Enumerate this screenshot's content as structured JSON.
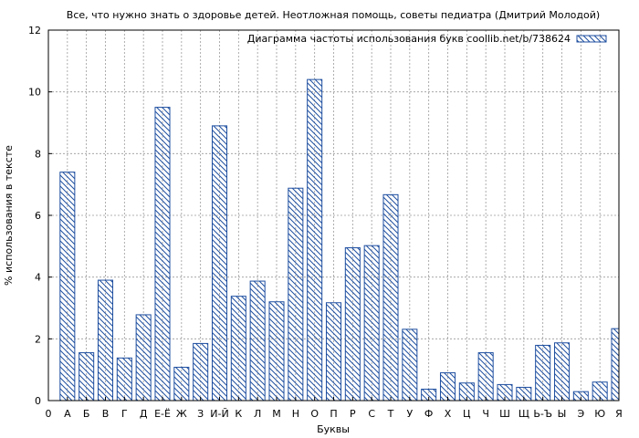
{
  "chart_data": {
    "type": "bar",
    "title": "Все, что нужно знать о здоровье детей. Неотложная помощь, советы педиатра (Дмитрий Молодой)",
    "xlabel": "Буквы",
    "ylabel": "% использования в тексте",
    "ylim": [
      0,
      12
    ],
    "yticks": [
      "0",
      "2",
      "4",
      "6",
      "8",
      "10",
      "12"
    ],
    "grid": true,
    "legend_position": "top-right",
    "x_start_label": "0",
    "categories": [
      "А",
      "Б",
      "В",
      "Г",
      "Д",
      "Е-Ё",
      "Ж",
      "З",
      "И-Й",
      "К",
      "Л",
      "М",
      "Н",
      "О",
      "П",
      "Р",
      "С",
      "Т",
      "У",
      "Ф",
      "Х",
      "Ц",
      "Ч",
      "Ш",
      "Щ",
      "Ь-Ъ",
      "Ы",
      "Э",
      "Ю",
      "Я"
    ],
    "series": [
      {
        "name": "Диаграмма частоты использования букв coollib.net/b/738624",
        "values": [
          7.4,
          1.55,
          3.9,
          1.38,
          2.78,
          9.5,
          1.08,
          1.85,
          8.9,
          3.38,
          3.87,
          3.2,
          6.88,
          10.4,
          3.17,
          4.95,
          5.02,
          6.67,
          2.31,
          0.37,
          0.9,
          0.57,
          1.55,
          0.52,
          0.43,
          1.79,
          1.87,
          0.29,
          0.6,
          2.33
        ]
      }
    ],
    "colors": {
      "bar_stroke": "#1f4fa0",
      "hatch": "#1f4fa0",
      "grid": "#9a9a9a",
      "axis": "#000000"
    }
  }
}
